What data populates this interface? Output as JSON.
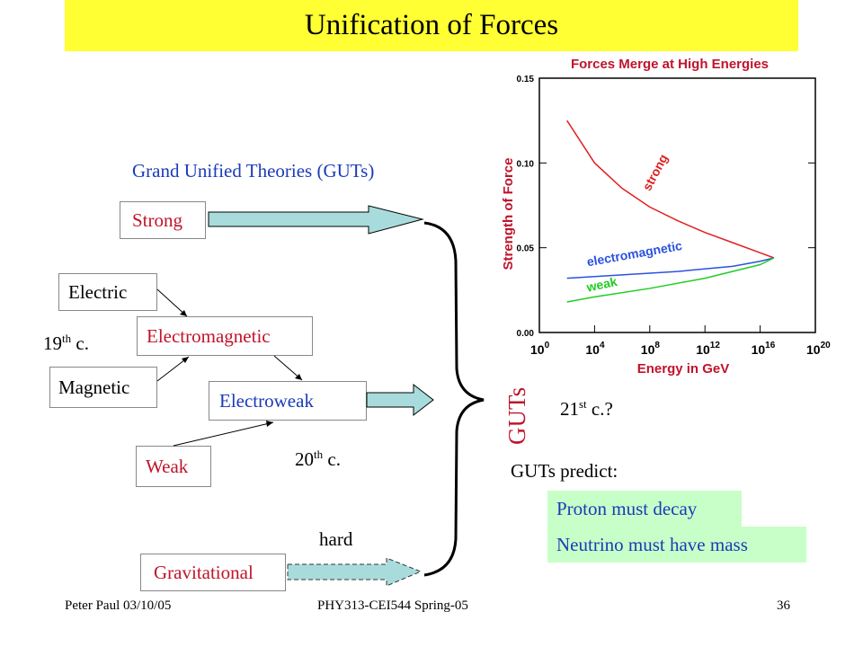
{
  "title": "Unification of Forces",
  "guts_heading": "Grand Unified Theories (GUTs)",
  "boxes": {
    "strong": "Strong",
    "electric": "Electric",
    "magnetic": "Magnetic",
    "electromagnetic": "Electromagnetic",
    "electroweak": "Electroweak",
    "weak": "Weak",
    "gravitational": "Gravitational"
  },
  "labels": {
    "c19_num": "19",
    "c19_sup": "th",
    "c19_rest": " c.",
    "c20_num": "20",
    "c20_sup": "th",
    "c20_rest": " c.",
    "c21_num": "21",
    "c21_sup": "st",
    "c21_rest": " c.?",
    "hard": "hard",
    "guts_vertical": "GUTs",
    "guts_predict": "GUTs predict:"
  },
  "predictions": {
    "proton": "Proton must decay",
    "neutrino": "Neutrino must have mass"
  },
  "footer": {
    "author": "Peter Paul 03/10/05",
    "course": "PHY313-CEI544 Spring-05",
    "page": "36"
  },
  "colors": {
    "title_bg": "#ffff33",
    "red_text": "#c0142a",
    "blue_text": "#1a3bb8",
    "prediction_bg": "#c8ffc8",
    "arrow_fill": "#a8dcdc",
    "strong_curve": "#e02020",
    "em_curve": "#2a52e0",
    "weak_curve": "#22cc22"
  },
  "chart_data": {
    "type": "line",
    "title": "Forces Merge at High Energies",
    "xlabel": "Energy in GeV",
    "ylabel": "Strength of Force",
    "x_tick_base": "10",
    "x_tick_exponents": [
      "0",
      "4",
      "8",
      "12",
      "16",
      "20"
    ],
    "y_ticks": [
      "0.00",
      "0.05",
      "0.10",
      "0.15"
    ],
    "xlim": [
      0,
      20
    ],
    "ylim": [
      0,
      0.15
    ],
    "series": [
      {
        "name": "strong",
        "x": [
          2,
          4,
          6,
          8,
          10,
          12,
          14,
          16,
          17
        ],
        "y": [
          0.125,
          0.1,
          0.085,
          0.074,
          0.066,
          0.059,
          0.053,
          0.047,
          0.044
        ]
      },
      {
        "name": "electromagnetic",
        "x": [
          2,
          6,
          10,
          14,
          16,
          17
        ],
        "y": [
          0.032,
          0.034,
          0.036,
          0.039,
          0.042,
          0.044
        ]
      },
      {
        "name": "weak",
        "x": [
          2,
          4,
          8,
          12,
          16,
          17
        ],
        "y": [
          0.018,
          0.021,
          0.026,
          0.032,
          0.04,
          0.044
        ]
      }
    ]
  }
}
